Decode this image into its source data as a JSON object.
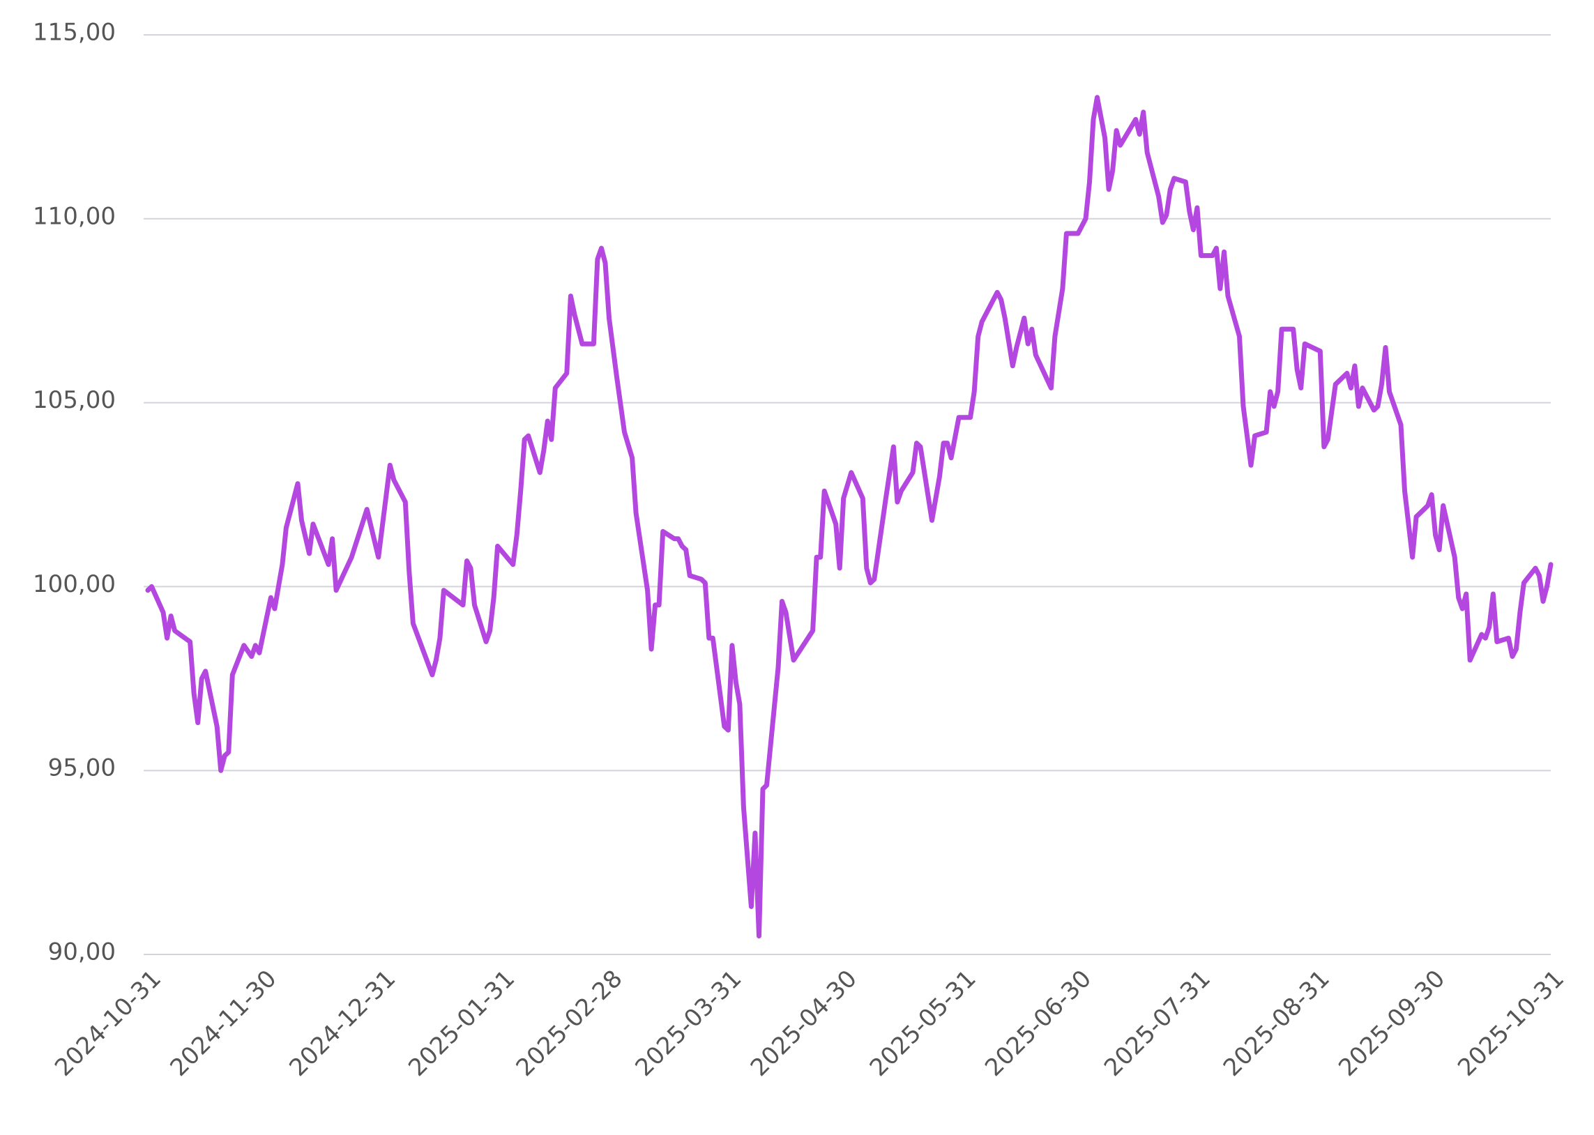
{
  "chart_data": {
    "type": "line",
    "color": "#b347e0",
    "x": [
      "2024-10-31",
      "2024-11-01",
      "2024-11-04",
      "2024-11-05",
      "2024-11-06",
      "2024-11-07",
      "2024-11-11",
      "2024-11-12",
      "2024-11-13",
      "2024-11-14",
      "2024-11-15",
      "2024-11-18",
      "2024-11-19",
      "2024-11-20",
      "2024-11-21",
      "2024-11-22",
      "2024-11-25",
      "2024-11-27",
      "2024-11-28",
      "2024-11-29",
      "2024-12-02",
      "2024-12-03",
      "2024-12-05",
      "2024-12-06",
      "2024-12-09",
      "2024-12-10",
      "2024-12-12",
      "2024-12-13",
      "2024-12-17",
      "2024-12-18",
      "2024-12-19",
      "2024-12-23",
      "2024-12-27",
      "2024-12-30",
      "2025-01-02",
      "2025-01-03",
      "2025-01-06",
      "2025-01-07",
      "2025-01-08",
      "2025-01-13",
      "2025-01-14",
      "2025-01-15",
      "2025-01-16",
      "2025-01-21",
      "2025-01-22",
      "2025-01-23",
      "2025-01-24",
      "2025-01-27",
      "2025-01-28",
      "2025-01-29",
      "2025-01-30",
      "2025-02-03",
      "2025-02-04",
      "2025-02-05",
      "2025-02-06",
      "2025-02-07",
      "2025-02-10",
      "2025-02-11",
      "2025-02-12",
      "2025-02-13",
      "2025-02-14",
      "2025-02-17",
      "2025-02-18",
      "2025-02-19",
      "2025-02-21",
      "2025-02-24",
      "2025-02-25",
      "2025-02-26",
      "2025-02-27",
      "2025-02-28",
      "2025-03-02",
      "2025-03-04",
      "2025-03-06",
      "2025-03-07",
      "2025-03-10",
      "2025-03-11",
      "2025-03-12",
      "2025-03-13",
      "2025-03-14",
      "2025-03-17",
      "2025-03-18",
      "2025-03-19",
      "2025-03-20",
      "2025-03-21",
      "2025-03-24",
      "2025-03-25",
      "2025-03-26",
      "2025-03-27",
      "2025-03-30",
      "2025-03-31",
      "2025-04-01",
      "2025-04-02",
      "2025-04-03",
      "2025-04-04",
      "2025-04-06",
      "2025-04-07",
      "2025-04-08",
      "2025-04-09",
      "2025-04-10",
      "2025-04-13",
      "2025-04-14",
      "2025-04-15",
      "2025-04-17",
      "2025-04-22",
      "2025-04-23",
      "2025-04-24",
      "2025-04-25",
      "2025-04-28",
      "2025-04-29",
      "2025-04-30",
      "2025-05-02",
      "2025-05-05",
      "2025-05-06",
      "2025-05-07",
      "2025-05-08",
      "2025-05-11",
      "2025-05-13",
      "2025-05-14",
      "2025-05-15",
      "2025-05-18",
      "2025-05-19",
      "2025-05-20",
      "2025-05-23",
      "2025-05-25",
      "2025-05-26",
      "2025-05-27",
      "2025-05-28",
      "2025-05-30",
      "2025-06-02",
      "2025-06-03",
      "2025-06-04",
      "2025-06-05",
      "2025-06-09",
      "2025-06-10",
      "2025-06-11",
      "2025-06-13",
      "2025-06-14",
      "2025-06-16",
      "2025-06-17",
      "2025-06-18",
      "2025-06-19",
      "2025-06-23",
      "2025-06-24",
      "2025-06-26",
      "2025-06-27",
      "2025-06-30",
      "2025-07-02",
      "2025-07-03",
      "2025-07-04",
      "2025-07-05",
      "2025-07-07",
      "2025-07-08",
      "2025-07-09",
      "2025-07-10",
      "2025-07-11",
      "2025-07-15",
      "2025-07-16",
      "2025-07-17",
      "2025-07-18",
      "2025-07-21",
      "2025-07-22",
      "2025-07-23",
      "2025-07-24",
      "2025-07-25",
      "2025-07-28",
      "2025-07-29",
      "2025-07-30",
      "2025-07-31",
      "2025-08-01",
      "2025-08-04",
      "2025-08-05",
      "2025-08-06",
      "2025-08-07",
      "2025-08-08",
      "2025-08-11",
      "2025-08-12",
      "2025-08-13",
      "2025-08-14",
      "2025-08-15",
      "2025-08-18",
      "2025-08-19",
      "2025-08-20",
      "2025-08-21",
      "2025-08-22",
      "2025-08-25",
      "2025-08-26",
      "2025-08-27",
      "2025-08-28",
      "2025-09-01",
      "2025-09-02",
      "2025-09-03",
      "2025-09-05",
      "2025-09-08",
      "2025-09-09",
      "2025-09-10",
      "2025-09-11",
      "2025-09-12",
      "2025-09-15",
      "2025-09-16",
      "2025-09-17",
      "2025-09-18",
      "2025-09-19",
      "2025-09-22",
      "2025-09-23",
      "2025-09-25",
      "2025-09-26",
      "2025-09-29",
      "2025-09-30",
      "2025-10-01",
      "2025-10-02",
      "2025-10-03",
      "2025-10-06",
      "2025-10-07",
      "2025-10-08",
      "2025-10-09",
      "2025-10-10",
      "2025-10-13",
      "2025-10-14",
      "2025-10-15",
      "2025-10-16",
      "2025-10-17",
      "2025-10-20",
      "2025-10-21",
      "2025-10-22",
      "2025-10-23",
      "2025-10-24",
      "2025-10-27",
      "2025-10-28",
      "2025-10-29",
      "2025-10-30",
      "2025-10-31"
    ],
    "values": [
      99.9,
      100.0,
      99.3,
      98.6,
      99.2,
      98.8,
      98.5,
      97.1,
      96.3,
      97.5,
      97.7,
      96.2,
      95.0,
      95.4,
      95.5,
      97.6,
      98.4,
      98.1,
      98.4,
      98.2,
      99.7,
      99.4,
      100.6,
      101.6,
      102.8,
      101.8,
      100.9,
      101.7,
      100.6,
      101.3,
      99.9,
      100.8,
      102.1,
      100.8,
      103.3,
      102.9,
      102.3,
      100.4,
      99.0,
      97.6,
      98.0,
      98.6,
      99.9,
      99.5,
      100.7,
      100.5,
      99.5,
      98.5,
      98.8,
      99.7,
      101.1,
      100.6,
      101.4,
      102.6,
      104.0,
      104.1,
      103.1,
      103.7,
      104.5,
      104.0,
      105.4,
      105.8,
      107.9,
      107.4,
      106.6,
      106.6,
      108.9,
      109.2,
      108.8,
      107.3,
      105.7,
      104.2,
      103.5,
      102.0,
      99.9,
      98.3,
      99.5,
      99.5,
      101.5,
      101.3,
      101.3,
      101.1,
      101.0,
      100.3,
      100.2,
      100.1,
      98.6,
      98.6,
      96.2,
      96.1,
      98.4,
      97.4,
      96.8,
      94.0,
      91.3,
      93.3,
      90.5,
      94.5,
      94.6,
      97.8,
      99.6,
      99.3,
      98.0,
      98.8,
      100.8,
      100.8,
      102.6,
      101.7,
      100.5,
      102.4,
      103.1,
      102.4,
      100.5,
      100.1,
      100.2,
      102.4,
      103.8,
      102.3,
      102.6,
      103.1,
      103.9,
      103.8,
      101.8,
      103.0,
      103.9,
      103.9,
      103.5,
      104.6,
      104.6,
      105.3,
      106.8,
      107.2,
      108.0,
      107.8,
      107.3,
      106.0,
      106.5,
      107.3,
      106.6,
      107.0,
      106.3,
      105.4,
      106.8,
      108.1,
      109.6,
      109.6,
      110.0,
      111.0,
      112.7,
      113.3,
      112.2,
      110.8,
      111.3,
      112.4,
      112.0,
      112.7,
      112.3,
      112.9,
      111.8,
      110.6,
      109.9,
      110.1,
      110.8,
      111.1,
      111.0,
      110.2,
      109.7,
      110.3,
      109.0,
      109.0,
      109.2,
      108.1,
      109.1,
      107.9,
      106.8,
      104.9,
      104.1,
      103.3,
      104.1,
      104.2,
      105.3,
      104.9,
      105.3,
      107.0,
      107.0,
      105.9,
      105.4,
      106.6,
      106.4,
      103.8,
      104.0,
      105.5,
      105.8,
      105.4,
      106.0,
      104.9,
      105.4,
      104.8,
      104.9,
      105.5,
      106.5,
      105.3,
      104.4,
      102.6,
      100.8,
      101.9,
      102.2,
      102.5,
      101.4,
      101.0,
      102.2,
      100.8,
      99.7,
      99.4,
      99.8,
      98.0,
      98.7,
      98.6,
      98.9,
      99.8,
      98.5,
      98.6,
      98.1,
      98.3,
      99.3,
      100.1,
      100.5,
      100.3,
      99.6,
      100.0,
      100.6
    ],
    "xlim": [
      "2024-10-31",
      "2025-10-31"
    ],
    "xticks": [
      "2024-10-31",
      "2024-11-30",
      "2024-12-31",
      "2025-01-31",
      "2025-02-28",
      "2025-03-31",
      "2025-04-30",
      "2025-05-31",
      "2025-06-30",
      "2025-07-31",
      "2025-08-31",
      "2025-09-30",
      "2025-10-31"
    ],
    "ylim": [
      90,
      115
    ],
    "yticks": [
      {
        "value": 90,
        "label": "90,00"
      },
      {
        "value": 95,
        "label": "95,00"
      },
      {
        "value": 100,
        "label": "100,00"
      },
      {
        "value": 105,
        "label": "105,00"
      },
      {
        "value": 110,
        "label": "110,00"
      },
      {
        "value": 115,
        "label": "115,00"
      }
    ],
    "grid": true
  }
}
